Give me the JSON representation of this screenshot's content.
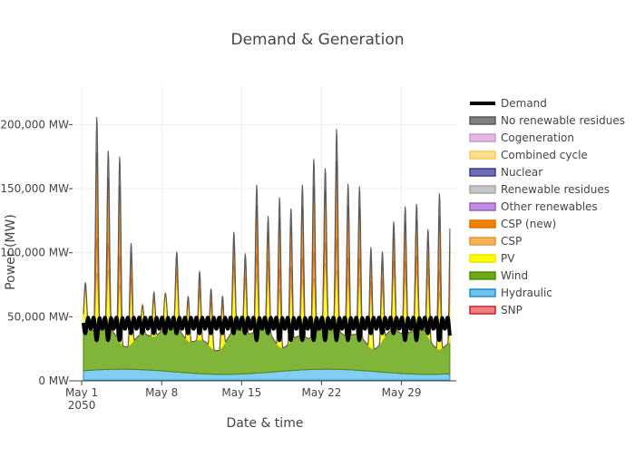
{
  "chart_data": {
    "type": "area",
    "title": "Demand & Generation",
    "xlabel": "Date & time",
    "ylabel": "Power (MW)",
    "x_range": [
      "2050-05-01",
      "2050-06-02"
    ],
    "ylim": [
      0,
      230000
    ],
    "x_ticks": [
      {
        "day": 1,
        "label": "May 1",
        "sublabel": "2050"
      },
      {
        "day": 8,
        "label": "May 8",
        "sublabel": ""
      },
      {
        "day": 15,
        "label": "May 15",
        "sublabel": ""
      },
      {
        "day": 22,
        "label": "May 22",
        "sublabel": ""
      },
      {
        "day": 29,
        "label": "May 29",
        "sublabel": ""
      }
    ],
    "y_ticks": [
      {
        "value": 0,
        "label": "0 MW"
      },
      {
        "value": 50000,
        "label": "50,000 MW"
      },
      {
        "value": 100000,
        "label": "100,000 MW"
      },
      {
        "value": 150000,
        "label": "150,000 MW"
      },
      {
        "value": 200000,
        "label": "200,000 MW"
      }
    ],
    "grid": true,
    "legend_position": "right",
    "legend": [
      {
        "name": "Demand",
        "color": "#000000",
        "line": "#000000",
        "kind": "line"
      },
      {
        "name": "No renewable residues",
        "color": "#7f7f7f",
        "line": "#595959",
        "kind": "area"
      },
      {
        "name": "Cogeneration",
        "color": "#e6b8e6",
        "line": "#c79bc7",
        "kind": "area"
      },
      {
        "name": "Combined cycle",
        "color": "#ffe08a",
        "line": "#f2c95a",
        "kind": "area"
      },
      {
        "name": "Nuclear",
        "color": "#6e6eb8",
        "line": "#3b3b8a",
        "kind": "area"
      },
      {
        "name": "Renewable residues",
        "color": "#c4c4c4",
        "line": "#a6a6a6",
        "kind": "area"
      },
      {
        "name": "Other renewables",
        "color": "#c08ee0",
        "line": "#9a5fc4",
        "kind": "area"
      },
      {
        "name": "CSP (new)",
        "color": "#f08000",
        "line": "#e07000",
        "kind": "area"
      },
      {
        "name": "CSP",
        "color": "#f5b35c",
        "line": "#e09a30",
        "kind": "area"
      },
      {
        "name": "PV",
        "color": "#ffff00",
        "line": "#e6e600",
        "kind": "area"
      },
      {
        "name": "Wind",
        "color": "#6aa816",
        "line": "#4f8a0c",
        "kind": "area"
      },
      {
        "name": "Hydraulic",
        "color": "#6ec3ee",
        "line": "#1f8ad0",
        "kind": "area"
      },
      {
        "name": "SNP",
        "color": "#f08080",
        "line": "#d02020",
        "kind": "area"
      }
    ],
    "daily_peaks": [
      {
        "day": 1.5,
        "total": 82000
      },
      {
        "day": 2.3,
        "total": 215000
      },
      {
        "day": 3.3,
        "total": 186000
      },
      {
        "day": 4.3,
        "total": 193000
      },
      {
        "day": 5.3,
        "total": 127000
      },
      {
        "day": 6.3,
        "total": 65000
      },
      {
        "day": 7.3,
        "total": 83000
      },
      {
        "day": 8.3,
        "total": 72000
      },
      {
        "day": 9.3,
        "total": 106000
      },
      {
        "day": 10.3,
        "total": 83000
      },
      {
        "day": 11.3,
        "total": 102000
      },
      {
        "day": 12.3,
        "total": 94000
      },
      {
        "day": 13.3,
        "total": 88000
      },
      {
        "day": 14.3,
        "total": 125000
      },
      {
        "day": 15.3,
        "total": 110000
      },
      {
        "day": 16.3,
        "total": 162000
      },
      {
        "day": 17.3,
        "total": 138000
      },
      {
        "day": 18.3,
        "total": 165000
      },
      {
        "day": 19.3,
        "total": 152000
      },
      {
        "day": 20.3,
        "total": 167000
      },
      {
        "day": 21.3,
        "total": 186000
      },
      {
        "day": 22.3,
        "total": 167000
      },
      {
        "day": 23.3,
        "total": 203000
      },
      {
        "day": 24.3,
        "total": 167000
      },
      {
        "day": 25.3,
        "total": 165000
      },
      {
        "day": 26.3,
        "total": 127000
      },
      {
        "day": 27.3,
        "total": 118000
      },
      {
        "day": 28.3,
        "total": 133000
      },
      {
        "day": 29.3,
        "total": 148000
      },
      {
        "day": 30.3,
        "total": 145000
      },
      {
        "day": 31.3,
        "total": 132000
      },
      {
        "day": 32.3,
        "total": 170000
      }
    ]
  }
}
